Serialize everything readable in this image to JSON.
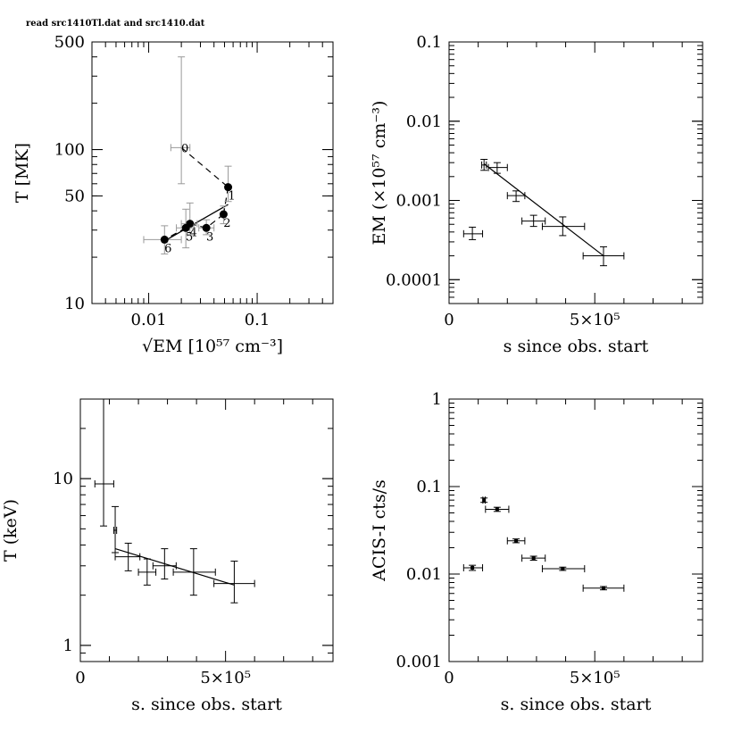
{
  "header_text": "read src1410Tl.dat and src1410.dat",
  "colors": {
    "ink": "#000000",
    "grey": "#999999",
    "background": "#ffffff"
  },
  "chart_data": [
    {
      "id": "p1",
      "type": "scatter",
      "xscale": "log",
      "yscale": "log",
      "xlim": [
        0.003,
        0.5
      ],
      "ylim": [
        10,
        500
      ],
      "xticks": [
        0.01,
        0.1
      ],
      "xticklabels": [
        "0.01",
        "0.1"
      ],
      "yticks": [
        10,
        50,
        100,
        500
      ],
      "yticklabels": [
        "10",
        "50",
        "100",
        "500"
      ],
      "xlabel": "√EM [10⁵⁷ cm⁻³]",
      "ylabel": "T [MK]",
      "series": [
        {
          "style": "grey-dashed",
          "points": [
            {
              "label": "0",
              "x": 0.02,
              "y": 103,
              "xlo": 0.016,
              "xhi": 0.024,
              "ylo": 60,
              "yhi": 400
            }
          ]
        },
        {
          "style": "black-dots",
          "points": [
            {
              "label": "1",
              "x": 0.054,
              "y": 57,
              "ylo": 46,
              "yhi": 78
            },
            {
              "label": "2",
              "x": 0.049,
              "y": 38,
              "ylo": 33,
              "yhi": 43
            },
            {
              "label": "3",
              "x": 0.034,
              "y": 31,
              "xlo": 0.029,
              "xhi": 0.04,
              "ylo": 28,
              "yhi": 35
            },
            {
              "label": "4",
              "x": 0.024,
              "y": 33,
              "xlo": 0.02,
              "xhi": 0.028,
              "ylo": 28,
              "yhi": 45
            },
            {
              "label": "5",
              "x": 0.022,
              "y": 31,
              "xlo": 0.018,
              "xhi": 0.026,
              "ylo": 23,
              "yhi": 41
            },
            {
              "label": "6",
              "x": 0.014,
              "y": 26,
              "xlo": 0.009,
              "xhi": 0.02,
              "ylo": 21,
              "yhi": 32
            }
          ]
        }
      ],
      "fit_line": [
        [
          0.014,
          25.5
        ],
        [
          0.054,
          44
        ]
      ]
    },
    {
      "id": "p2",
      "type": "scatter",
      "xscale": "linear",
      "yscale": "log",
      "xlim": [
        0,
        870000
      ],
      "ylim": [
        5e-05,
        0.1
      ],
      "xticks": [
        500000
      ],
      "xticklabels": [
        "5×10⁵"
      ],
      "xticklabel_extra": {
        "value": 0,
        "label": "0"
      },
      "yticks": [
        0.0001,
        0.001,
        0.01,
        0.1
      ],
      "yticklabels": [
        "0.0001",
        "0.001",
        "0.01",
        "0.1"
      ],
      "xlabel": "s since obs. start",
      "ylabel": "EM (×10⁵⁷ cm⁻³)",
      "points": [
        {
          "x": 80000,
          "y": 0.00038,
          "xlo": 50000,
          "xhi": 115000,
          "ylo": 0.00032,
          "yhi": 0.00046
        },
        {
          "x": 120000,
          "y": 0.0028,
          "xlo": 112000,
          "xhi": 128000,
          "ylo": 0.0024,
          "yhi": 0.0033
        },
        {
          "x": 165000,
          "y": 0.0026,
          "xlo": 135000,
          "xhi": 200000,
          "ylo": 0.0022,
          "yhi": 0.003
        },
        {
          "x": 230000,
          "y": 0.00115,
          "xlo": 200000,
          "xhi": 260000,
          "ylo": 0.00097,
          "yhi": 0.00132
        },
        {
          "x": 290000,
          "y": 0.00055,
          "xlo": 250000,
          "xhi": 330000,
          "ylo": 0.00047,
          "yhi": 0.00065
        },
        {
          "x": 390000,
          "y": 0.00047,
          "xlo": 320000,
          "xhi": 465000,
          "ylo": 0.00036,
          "yhi": 0.00062
        },
        {
          "x": 530000,
          "y": 0.0002,
          "xlo": 460000,
          "xhi": 600000,
          "ylo": 0.00015,
          "yhi": 0.00026
        }
      ],
      "fit_line": [
        [
          120000,
          0.0029
        ],
        [
          530000,
          0.0002
        ]
      ]
    },
    {
      "id": "p3",
      "type": "scatter",
      "xscale": "linear",
      "yscale": "log",
      "xlim": [
        0,
        870000
      ],
      "ylim": [
        0.8,
        30
      ],
      "xticks": [
        500000
      ],
      "xticklabels": [
        "5×10⁵"
      ],
      "xticklabel_extra": {
        "value": 0,
        "label": "0"
      },
      "yticks": [
        1,
        10
      ],
      "yticklabels": [
        "1",
        "10"
      ],
      "xlabel": "s. since obs. start",
      "ylabel": "T (keV)",
      "points": [
        {
          "x": 80000,
          "y": 9.3,
          "xlo": 50000,
          "xhi": 115000,
          "ylo": 5.2,
          "yhi": 30
        },
        {
          "x": 120000,
          "y": 4.9,
          "xlo": 115000,
          "xhi": 125000,
          "ylo": 3.6,
          "yhi": 6.8
        },
        {
          "x": 165000,
          "y": 3.4,
          "xlo": 120000,
          "xhi": 205000,
          "ylo": 2.8,
          "yhi": 4.1
        },
        {
          "x": 230000,
          "y": 2.75,
          "xlo": 200000,
          "xhi": 260000,
          "ylo": 2.3,
          "yhi": 3.3
        },
        {
          "x": 290000,
          "y": 3.0,
          "xlo": 250000,
          "xhi": 330000,
          "ylo": 2.5,
          "yhi": 3.8
        },
        {
          "x": 390000,
          "y": 2.75,
          "xlo": 320000,
          "xhi": 465000,
          "ylo": 2.0,
          "yhi": 3.8
        },
        {
          "x": 530000,
          "y": 2.35,
          "xlo": 460000,
          "xhi": 600000,
          "ylo": 1.8,
          "yhi": 3.2
        }
      ],
      "fit_line": [
        [
          120000,
          3.8
        ],
        [
          530000,
          2.3
        ]
      ]
    },
    {
      "id": "p4",
      "type": "scatter",
      "xscale": "linear",
      "yscale": "log",
      "xlim": [
        0,
        870000
      ],
      "ylim": [
        0.001,
        1
      ],
      "xticks": [
        500000
      ],
      "xticklabels": [
        "5×10⁵"
      ],
      "xticklabel_extra": {
        "value": 0,
        "label": "0"
      },
      "yticks": [
        0.001,
        0.01,
        0.1,
        1
      ],
      "yticklabels": [
        "0.001",
        "0.01",
        "0.1",
        "1"
      ],
      "xlabel": "s. since obs. start",
      "ylabel": "ACIS-I cts/s",
      "points": [
        {
          "x": 80000,
          "y": 0.0118,
          "xlo": 50000,
          "xhi": 115000,
          "ylo": 0.011,
          "yhi": 0.0126
        },
        {
          "x": 120000,
          "y": 0.07,
          "xlo": 116000,
          "xhi": 124000,
          "ylo": 0.066,
          "yhi": 0.074
        },
        {
          "x": 165000,
          "y": 0.055,
          "xlo": 125000,
          "xhi": 205000,
          "ylo": 0.052,
          "yhi": 0.058
        },
        {
          "x": 230000,
          "y": 0.024,
          "xlo": 200000,
          "xhi": 260000,
          "ylo": 0.0228,
          "yhi": 0.0252
        },
        {
          "x": 290000,
          "y": 0.0152,
          "xlo": 250000,
          "xhi": 330000,
          "ylo": 0.0144,
          "yhi": 0.016
        },
        {
          "x": 390000,
          "y": 0.0115,
          "xlo": 320000,
          "xhi": 465000,
          "ylo": 0.011,
          "yhi": 0.012
        },
        {
          "x": 530000,
          "y": 0.0069,
          "xlo": 460000,
          "xhi": 600000,
          "ylo": 0.0066,
          "yhi": 0.0072
        }
      ]
    }
  ]
}
